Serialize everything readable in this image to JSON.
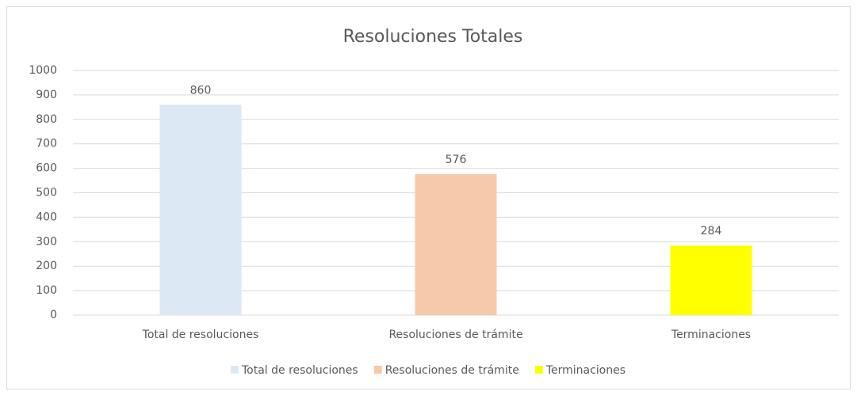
{
  "chart_data": {
    "type": "bar",
    "title": "Resoluciones Totales",
    "categories": [
      "Total de resoluciones",
      "Resoluciones de trámite",
      "Terminaciones"
    ],
    "series": [
      {
        "name": "Total de resoluciones",
        "color": "#dde8f5",
        "values": [
          860,
          null,
          null
        ]
      },
      {
        "name": "Resoluciones de trámite",
        "color": "#f7c9ab",
        "values": [
          null,
          576,
          null
        ]
      },
      {
        "name": "Terminaciones",
        "color": "#ffff00",
        "values": [
          null,
          null,
          284
        ]
      }
    ],
    "ylim": [
      0,
      1000
    ],
    "yticks": [
      0,
      100,
      200,
      300,
      400,
      500,
      600,
      700,
      800,
      900,
      1000
    ],
    "grid": true,
    "legend": "bottom"
  }
}
